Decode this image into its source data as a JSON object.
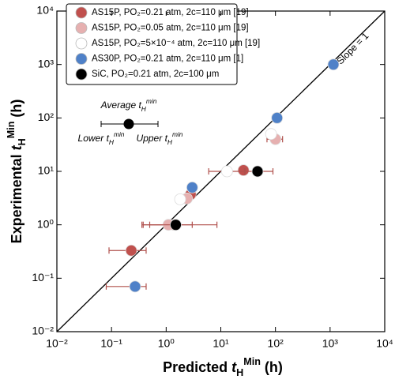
{
  "chart_data": {
    "type": "scatter",
    "x_label": [
      {
        "text": "Predicted "
      },
      {
        "text": "t",
        "style": "italic"
      },
      {
        "text": "H",
        "style": "sub"
      },
      {
        "text": "Min",
        "style": "sup"
      },
      {
        "text": " (h)"
      }
    ],
    "y_label": [
      {
        "text": "Experimental "
      },
      {
        "text": "t",
        "style": "italic"
      },
      {
        "text": "H",
        "style": "sub"
      },
      {
        "text": "Min",
        "style": "sup"
      },
      {
        "text": " (h)"
      }
    ],
    "xscale": "log",
    "yscale": "log",
    "xlim": [
      0.01,
      10000
    ],
    "ylim": [
      0.01,
      10000
    ],
    "xticks": [
      {
        "value": 0.01,
        "label": "10⁻²"
      },
      {
        "value": 0.1,
        "label": "10⁻¹"
      },
      {
        "value": 1,
        "label": "10⁰"
      },
      {
        "value": 10,
        "label": "10¹"
      },
      {
        "value": 100,
        "label": "10²"
      },
      {
        "value": 1000,
        "label": "10³"
      },
      {
        "value": 10000,
        "label": "10⁴"
      }
    ],
    "yticks": [
      {
        "value": 0.01,
        "label": "10⁻²"
      },
      {
        "value": 0.1,
        "label": "10⁻¹"
      },
      {
        "value": 1,
        "label": "10⁰"
      },
      {
        "value": 10,
        "label": "10¹"
      },
      {
        "value": 100,
        "label": "10²"
      },
      {
        "value": 1000,
        "label": "10³"
      },
      {
        "value": 10000,
        "label": "10⁴"
      }
    ],
    "reference_line": {
      "label": "Slope = 1",
      "slope": 1
    },
    "legend_position": "upper left",
    "error_bar_color": "#b0504c",
    "series": [
      {
        "name": "AS15P, PO₂=0.21 atm, 2c=110 μm [19]",
        "color": "#c0504d",
        "x": [
          0.23,
          1.4,
          2.8,
          26
        ],
        "values": [
          0.33,
          1.0,
          3.7,
          10.5
        ],
        "x_lower": [
          0.09,
          0.38,
          null,
          null
        ],
        "x_upper": [
          0.43,
          8.5,
          null,
          null
        ]
      },
      {
        "name": "AS15P, PO₂=0.05 atm, 2c=110 μm [19]",
        "color": "#e6b0b0",
        "x": [
          1.1,
          2.4,
          100
        ],
        "values": [
          1.0,
          3.1,
          40
        ],
        "x_lower": [
          0.36,
          null,
          70
        ],
        "x_upper": [
          1.8,
          null,
          135
        ]
      },
      {
        "name": "AS15P, PO₂=5×10⁻⁴ atm, 2c=110 μm [19]",
        "color": "#ffffff",
        "x": [
          1.8,
          13,
          83
        ],
        "values": [
          3.0,
          10,
          50
        ],
        "x_lower": [
          null,
          6,
          null
        ],
        "x_upper": [
          null,
          28,
          null
        ]
      },
      {
        "name": "AS30P, PO₂=0.21 atm, 2c=110 μm [1]",
        "color": "#4f81c8",
        "x": [
          0.27,
          3.0,
          107,
          1150
        ],
        "values": [
          0.07,
          5,
          100,
          1000
        ],
        "x_lower": [
          0.08,
          null,
          null,
          null
        ],
        "x_upper": [
          0.43,
          null,
          null,
          null
        ]
      },
      {
        "name": "SiC, PO₂=0.21 atm, 2c=100 μm",
        "color": "#000000",
        "x": [
          1.5,
          47
        ],
        "values": [
          1.0,
          10
        ],
        "x_lower": [
          0.5,
          27
        ],
        "x_upper": [
          3,
          90
        ]
      }
    ],
    "key": {
      "average": [
        {
          "text": "Average "
        },
        {
          "text": "t",
          "style": "italic"
        },
        {
          "text": "H",
          "style": "sub"
        },
        {
          "text": "min",
          "style": "sup"
        }
      ],
      "lower": [
        {
          "text": "Lower "
        },
        {
          "text": "t",
          "style": "italic"
        },
        {
          "text": "H",
          "style": "sub"
        },
        {
          "text": "min",
          "style": "sup"
        }
      ],
      "upper": [
        {
          "text": "Upper "
        },
        {
          "text": "t",
          "style": "italic"
        },
        {
          "text": "H",
          "style": "sub"
        },
        {
          "text": "min",
          "style": "sup"
        }
      ]
    }
  }
}
